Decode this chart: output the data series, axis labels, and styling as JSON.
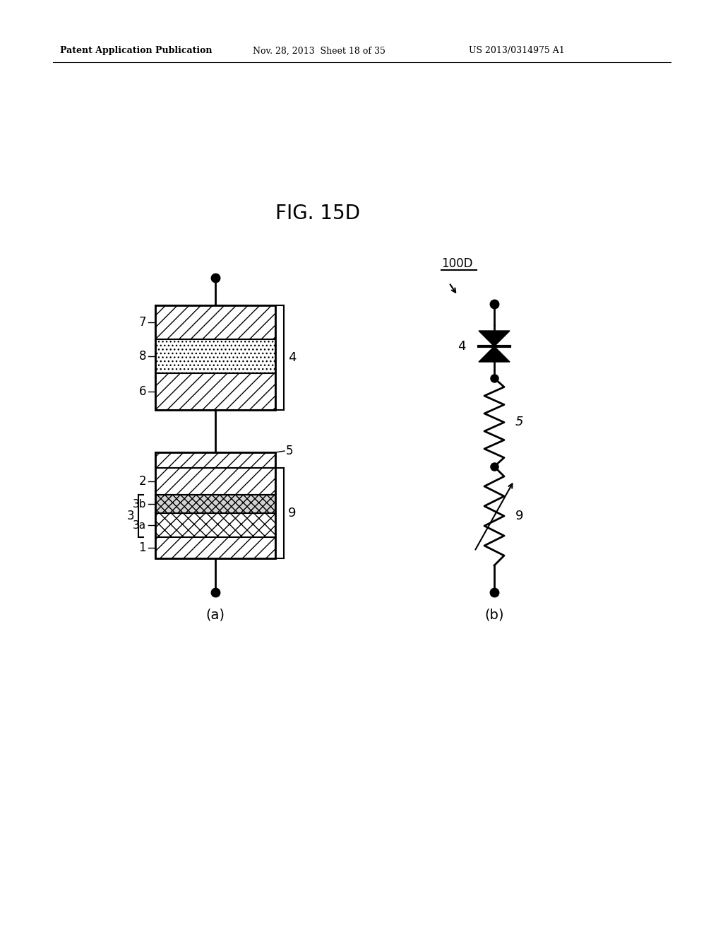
{
  "header_left": "Patent Application Publication",
  "header_mid": "Nov. 28, 2013  Sheet 18 of 35",
  "header_right": "US 2013/0314975 A1",
  "fig_label": "FIG. 15D",
  "sub_a_label": "(a)",
  "sub_b_label": "(b)",
  "label_100D": "100D",
  "background": "#ffffff"
}
